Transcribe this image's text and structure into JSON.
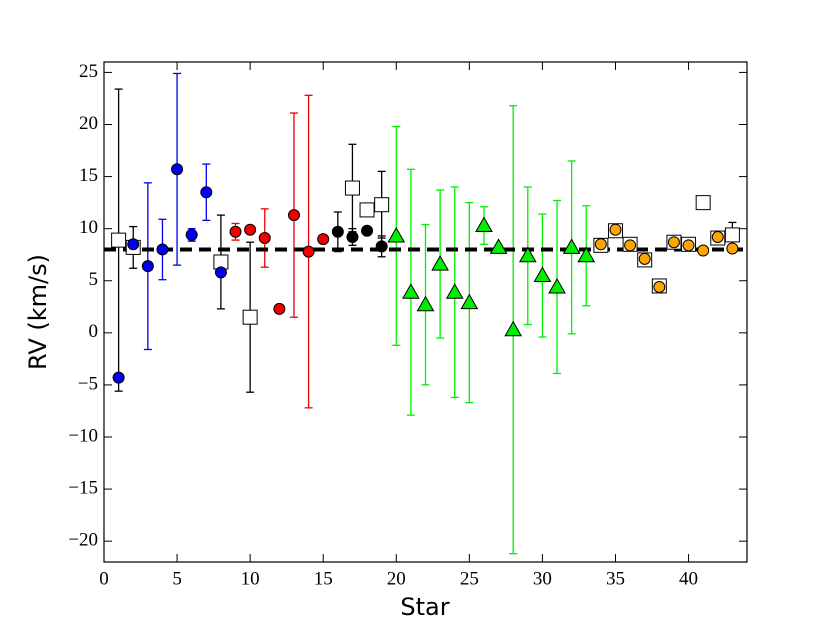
{
  "chart_data": {
    "type": "scatter",
    "xlabel": "Star",
    "ylabel": "RV (km/s)",
    "xlim": [
      0,
      44
    ],
    "ylim": [
      -22,
      26
    ],
    "xticks": [
      0,
      5,
      10,
      15,
      20,
      25,
      30,
      35,
      40
    ],
    "yticks": [
      {
        "value": -20,
        "label": "−20"
      },
      {
        "value": -15,
        "label": "−15"
      },
      {
        "value": -10,
        "label": "−10"
      },
      {
        "value": -5,
        "label": "−5"
      },
      0,
      5,
      10,
      15,
      20,
      25
    ],
    "hline": 8.0,
    "series": [
      {
        "color": "#ffffff",
        "marker": "square",
        "error_color": "#000000",
        "x": [
          1,
          2,
          8,
          10,
          17,
          18,
          19,
          34,
          35,
          36,
          37,
          38,
          39,
          40,
          41,
          42,
          43
        ],
        "values": [
          8.9,
          8.2,
          6.8,
          1.5,
          13.9,
          11.8,
          12.3,
          8.4,
          9.8,
          8.5,
          7.0,
          4.5,
          8.7,
          8.5,
          12.5,
          9.1,
          9.4
        ],
        "errors": [
          14.5,
          2.0,
          4.5,
          7.2,
          4.2,
          null,
          3.2,
          null,
          null,
          null,
          null,
          null,
          null,
          null,
          null,
          null,
          1.2
        ]
      },
      {
        "color": "#0000ee",
        "marker": "circle",
        "error_color": "#0000ee",
        "x": [
          1,
          2,
          3,
          4,
          5,
          6,
          7,
          8
        ],
        "values": [
          -4.3,
          8.5,
          6.4,
          8.0,
          15.7,
          9.4,
          13.5,
          5.8
        ],
        "errors": [
          null,
          null,
          8.0,
          2.9,
          9.2,
          0.6,
          2.7,
          null
        ]
      },
      {
        "color": "#ee0000",
        "marker": "circle",
        "error_color": "#ee0000",
        "x": [
          9,
          10,
          11,
          12,
          13,
          14,
          15
        ],
        "values": [
          9.7,
          9.9,
          9.1,
          2.3,
          11.3,
          7.8,
          9.0
        ],
        "errors": [
          0.8,
          null,
          2.8,
          null,
          9.8,
          15.0,
          null
        ]
      },
      {
        "color": "#000000",
        "marker": "circle",
        "error_color": "#000000",
        "x": [
          16,
          17,
          18,
          19
        ],
        "values": [
          9.7,
          9.2,
          9.8,
          8.3
        ],
        "errors": [
          1.9,
          0.8,
          null,
          1.0
        ]
      },
      {
        "color": "#00ee00",
        "marker": "triangle",
        "error_color": "#00ee00",
        "x": [
          20,
          21,
          22,
          23,
          24,
          25,
          26,
          27,
          28,
          29,
          30,
          31,
          32,
          33
        ],
        "values": [
          9.3,
          3.9,
          2.7,
          6.6,
          3.9,
          2.9,
          10.3,
          8.2,
          0.3,
          7.4,
          5.5,
          4.4,
          8.2,
          7.4
        ],
        "errors": [
          10.5,
          11.8,
          7.7,
          7.1,
          10.1,
          9.6,
          1.8,
          null,
          21.5,
          6.6,
          5.9,
          8.3,
          8.3,
          4.8
        ]
      },
      {
        "color": "#ffa500",
        "marker": "circle",
        "error_color": "#ffa500",
        "x": [
          34,
          35,
          36,
          37,
          38,
          39,
          40,
          41,
          42,
          43
        ],
        "values": [
          8.5,
          9.9,
          8.4,
          7.1,
          4.4,
          8.7,
          8.4,
          7.9,
          9.2,
          8.1
        ],
        "errors": [
          null,
          null,
          null,
          null,
          null,
          null,
          null,
          null,
          null,
          null
        ]
      }
    ]
  }
}
